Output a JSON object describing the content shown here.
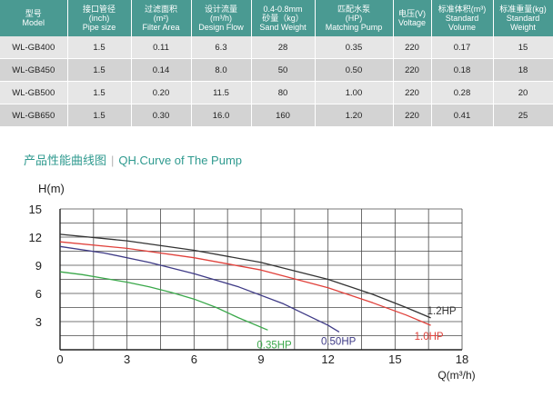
{
  "table": {
    "headers": [
      {
        "cn": "型号",
        "en": "Model"
      },
      {
        "cn": "接口管径",
        "en": "(inch)",
        "en2": "Pipe size"
      },
      {
        "cn": "过滤面积",
        "en": "(m²)",
        "en2": "Filter Area"
      },
      {
        "cn": "设计流量",
        "en": "(m³/h)",
        "en2": "Design Flow"
      },
      {
        "cn": "0.4-0.8mm",
        "en": "砂量（kg）",
        "en2": "Sand Weight"
      },
      {
        "cn": "匹配水泵",
        "en": "(HP)",
        "en2": "Matching Pump"
      },
      {
        "cn": "电压(V)",
        "en": "Voltage"
      },
      {
        "cn": "标准体积(m³)",
        "en": "Standard",
        "en2": "Volume"
      },
      {
        "cn": "标准重量(kg)",
        "en": "Standard",
        "en2": "Weight"
      }
    ],
    "rows": [
      [
        "WL-GB400",
        "1.5",
        "0.11",
        "6.3",
        "28",
        "0.35",
        "220",
        "0.17",
        "15"
      ],
      [
        "WL-GB450",
        "1.5",
        "0.14",
        "8.0",
        "50",
        "0.50",
        "220",
        "0.18",
        "18"
      ],
      [
        "WL-GB500",
        "1.5",
        "0.20",
        "11.5",
        "80",
        "1.00",
        "220",
        "0.28",
        "20"
      ],
      [
        "WL-GB650",
        "1.5",
        "0.30",
        "16.0",
        "160",
        "1.20",
        "220",
        "0.41",
        "25"
      ]
    ]
  },
  "section_title": {
    "cn": "产品性能曲线图",
    "separator": "|",
    "en": "QH.Curve of The Pump"
  },
  "chart_data": {
    "type": "line",
    "xlabel": "Q(m³/h)",
    "ylabel": "H(m)",
    "xlim": [
      0,
      18
    ],
    "ylim": [
      0,
      15
    ],
    "x_ticks": [
      "0",
      "3",
      "6",
      "9",
      "12",
      "15",
      "18"
    ],
    "y_ticks": [
      "3",
      "6",
      "9",
      "12",
      "15"
    ],
    "grid": true,
    "series": [
      {
        "name": "0.35HP",
        "color": "#3aa84a",
        "x": [
          0,
          1,
          2,
          3,
          4,
          5,
          6,
          7,
          8,
          9.3
        ],
        "y": [
          8.3,
          8.0,
          7.6,
          7.2,
          6.7,
          6.1,
          5.4,
          4.5,
          3.4,
          2.1
        ]
      },
      {
        "name": "0.50HP",
        "color": "#3e3a86",
        "x": [
          0,
          2,
          4,
          6,
          8,
          10,
          12,
          12.5
        ],
        "y": [
          11.0,
          10.3,
          9.3,
          8.1,
          6.7,
          4.9,
          2.6,
          1.9
        ]
      },
      {
        "name": "1.0HP",
        "color": "#e0403a",
        "x": [
          0,
          3,
          6,
          9,
          12,
          14,
          15.5,
          16.6
        ],
        "y": [
          11.5,
          10.8,
          9.8,
          8.5,
          6.6,
          5.0,
          3.7,
          2.6
        ]
      },
      {
        "name": "1.2HP",
        "color": "#333333",
        "x": [
          0,
          3,
          6,
          9,
          12,
          14,
          15.5,
          16.6
        ],
        "y": [
          12.3,
          11.6,
          10.6,
          9.3,
          7.5,
          5.9,
          4.5,
          3.4
        ]
      }
    ]
  }
}
